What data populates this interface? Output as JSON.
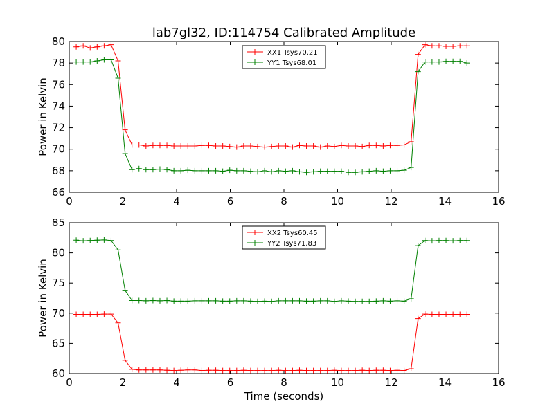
{
  "title": "lab7gl32, ID:114754 Calibrated Amplitude",
  "xlabel": "Time (seconds)",
  "colors": {
    "red": "#ff0000",
    "green": "#008000"
  },
  "chart_data": [
    {
      "type": "line",
      "title": "lab7gl32, ID:114754 Calibrated Amplitude",
      "xlabel": "",
      "ylabel": "Power in Kelvin",
      "xlim": [
        0,
        16
      ],
      "ylim": [
        66,
        80
      ],
      "xticks": [
        "0",
        "2",
        "4",
        "6",
        "8",
        "10",
        "12",
        "14",
        "16"
      ],
      "yticks": [
        "66",
        "68",
        "70",
        "72",
        "74",
        "76",
        "78",
        "80"
      ],
      "grid": false,
      "legend_position": "top-center",
      "x": [
        0.26,
        0.52,
        0.78,
        1.04,
        1.3,
        1.56,
        1.82,
        2.08,
        2.34,
        2.6,
        2.86,
        3.12,
        3.38,
        3.64,
        3.9,
        4.16,
        4.42,
        4.68,
        4.94,
        5.2,
        5.46,
        5.72,
        5.98,
        6.24,
        6.5,
        6.76,
        7.02,
        7.28,
        7.54,
        7.8,
        8.06,
        8.32,
        8.58,
        8.84,
        9.1,
        9.36,
        9.62,
        9.88,
        10.14,
        10.4,
        10.66,
        10.92,
        11.18,
        11.44,
        11.7,
        11.96,
        12.22,
        12.48,
        12.74,
        13.0,
        13.26,
        13.52,
        13.78,
        14.04,
        14.3,
        14.56,
        14.82
      ],
      "series": [
        {
          "name": "XX1 Tsys70.21",
          "color": "#ff0000",
          "values": [
            79.5,
            79.6,
            79.4,
            79.5,
            79.6,
            79.7,
            78.2,
            71.8,
            70.4,
            70.4,
            70.3,
            70.35,
            70.35,
            70.35,
            70.3,
            70.3,
            70.3,
            70.3,
            70.35,
            70.35,
            70.3,
            70.3,
            70.25,
            70.2,
            70.3,
            70.3,
            70.25,
            70.2,
            70.25,
            70.3,
            70.3,
            70.2,
            70.35,
            70.3,
            70.3,
            70.2,
            70.3,
            70.25,
            70.35,
            70.3,
            70.3,
            70.25,
            70.35,
            70.35,
            70.3,
            70.35,
            70.35,
            70.4,
            70.7,
            78.8,
            79.7,
            79.6,
            79.6,
            79.55,
            79.55,
            79.6,
            79.6
          ]
        },
        {
          "name": "YY1 Tsys68.01",
          "color": "#008000",
          "values": [
            78.1,
            78.1,
            78.1,
            78.2,
            78.3,
            78.3,
            76.6,
            69.6,
            68.1,
            68.2,
            68.1,
            68.1,
            68.15,
            68.1,
            68.0,
            68.0,
            68.05,
            68.0,
            68.0,
            68.0,
            68.0,
            67.95,
            68.05,
            68.0,
            68.0,
            67.95,
            67.9,
            68.0,
            67.9,
            68.0,
            67.95,
            68.0,
            67.9,
            67.85,
            67.9,
            67.95,
            67.95,
            67.95,
            67.95,
            67.85,
            67.85,
            67.9,
            67.95,
            68.0,
            67.95,
            68.0,
            68.0,
            68.05,
            68.3,
            77.2,
            78.1,
            78.1,
            78.1,
            78.15,
            78.15,
            78.15,
            78.0
          ]
        }
      ]
    },
    {
      "type": "line",
      "title": "",
      "xlabel": "Time (seconds)",
      "ylabel": "Power in Kelvin",
      "xlim": [
        0,
        16
      ],
      "ylim": [
        60,
        85
      ],
      "xticks": [
        "0",
        "2",
        "4",
        "6",
        "8",
        "10",
        "12",
        "14",
        "16"
      ],
      "yticks": [
        "60",
        "65",
        "70",
        "75",
        "80",
        "85"
      ],
      "grid": false,
      "legend_position": "top-center",
      "x": [
        0.26,
        0.52,
        0.78,
        1.04,
        1.3,
        1.56,
        1.82,
        2.08,
        2.34,
        2.6,
        2.86,
        3.12,
        3.38,
        3.64,
        3.9,
        4.16,
        4.42,
        4.68,
        4.94,
        5.2,
        5.46,
        5.72,
        5.98,
        6.24,
        6.5,
        6.76,
        7.02,
        7.28,
        7.54,
        7.8,
        8.06,
        8.32,
        8.58,
        8.84,
        9.1,
        9.36,
        9.62,
        9.88,
        10.14,
        10.4,
        10.66,
        10.92,
        11.18,
        11.44,
        11.7,
        11.96,
        12.22,
        12.48,
        12.74,
        13.0,
        13.26,
        13.52,
        13.78,
        14.04,
        14.3,
        14.56,
        14.82
      ],
      "series": [
        {
          "name": "XX2 Tsys60.45",
          "color": "#ff0000",
          "values": [
            69.8,
            69.8,
            69.8,
            69.8,
            69.85,
            69.85,
            68.4,
            62.2,
            60.7,
            60.6,
            60.6,
            60.6,
            60.6,
            60.55,
            60.5,
            60.55,
            60.6,
            60.6,
            60.5,
            60.55,
            60.55,
            60.5,
            60.5,
            60.5,
            60.55,
            60.5,
            60.5,
            60.5,
            60.5,
            60.55,
            60.5,
            60.5,
            60.55,
            60.5,
            60.5,
            60.5,
            60.5,
            60.55,
            60.5,
            60.5,
            60.5,
            60.55,
            60.5,
            60.55,
            60.55,
            60.5,
            60.55,
            60.5,
            60.8,
            69.1,
            69.85,
            69.8,
            69.8,
            69.8,
            69.8,
            69.8,
            69.8
          ]
        },
        {
          "name": "YY2 Tsys71.83",
          "color": "#008000",
          "values": [
            82.1,
            82.0,
            82.05,
            82.1,
            82.15,
            82.05,
            80.5,
            73.8,
            72.1,
            72.1,
            72.05,
            72.1,
            72.05,
            72.1,
            72.0,
            72.0,
            72.0,
            72.05,
            72.05,
            72.05,
            72.05,
            72.0,
            72.0,
            72.05,
            72.05,
            72.0,
            71.95,
            72.0,
            71.95,
            72.05,
            72.05,
            72.05,
            72.05,
            72.0,
            72.0,
            72.05,
            72.05,
            71.95,
            72.05,
            72.0,
            71.95,
            71.95,
            71.95,
            72.0,
            72.05,
            72.0,
            72.05,
            72.0,
            72.4,
            81.2,
            82.05,
            82.0,
            82.05,
            82.05,
            82.0,
            82.05,
            82.05
          ]
        }
      ]
    }
  ]
}
